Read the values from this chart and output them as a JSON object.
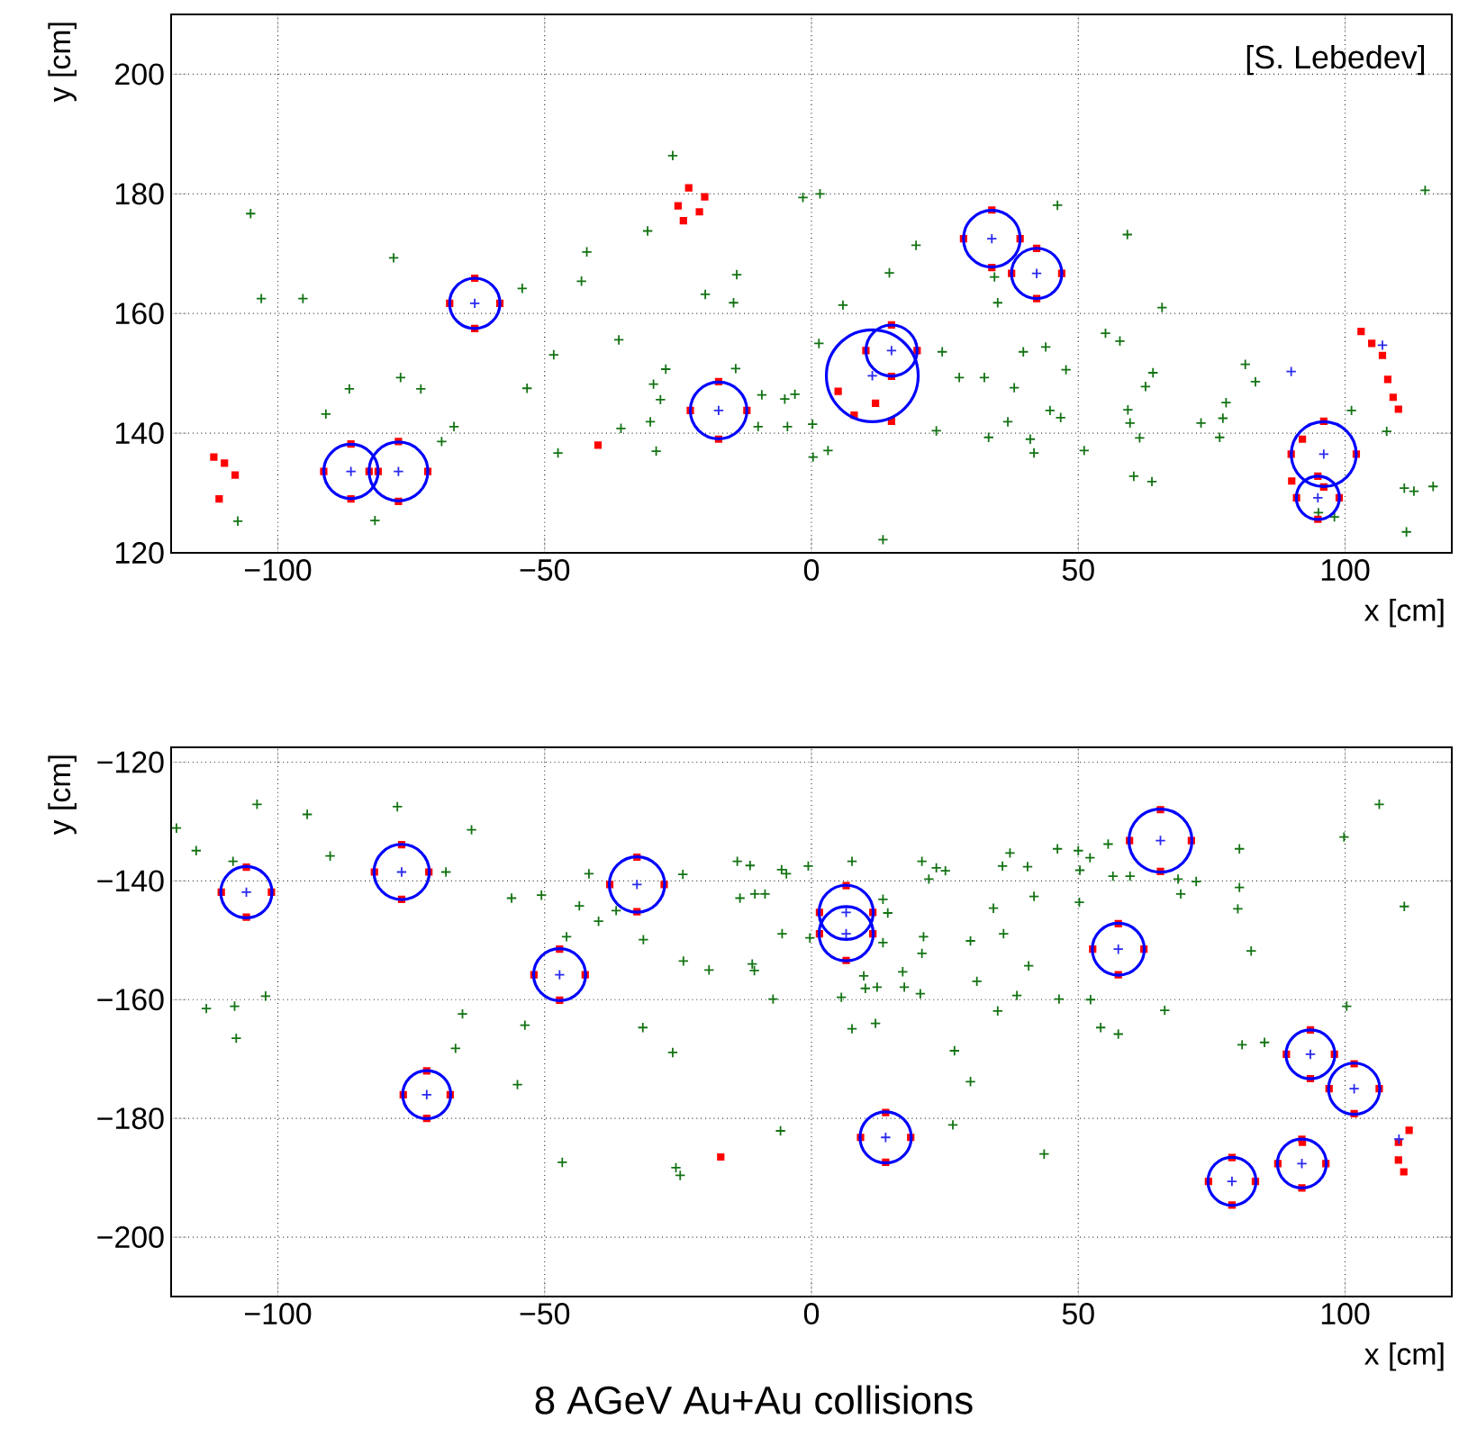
{
  "chart_data": [
    {
      "type": "scatter",
      "xlabel": "x [cm]",
      "ylabel": "y [cm]",
      "annotations": [
        "[S. Lebedev]"
      ],
      "grid": true,
      "xlim": [
        -120,
        120
      ],
      "ylim": [
        120,
        210
      ],
      "xticks": [
        {
          "value": -100,
          "label": "−100"
        },
        {
          "value": -50,
          "label": "−50"
        },
        {
          "value": 0,
          "label": "0"
        },
        {
          "value": 50,
          "label": "50"
        },
        {
          "value": 100,
          "label": "100"
        }
      ],
      "yticks": [
        120,
        140,
        160,
        180,
        200
      ],
      "series": [
        {
          "type": "scatter",
          "marker": "cross",
          "color": "#137313",
          "x": [
            -105.1,
            -103.1,
            -95.3,
            -78.3,
            -91,
            -86.6,
            -77,
            -73.2,
            -67,
            -69.3,
            -81.8,
            -107.5,
            -54.2,
            -53.3,
            -48.3,
            -47.5,
            -43.1,
            -42.1,
            -36.1,
            -35.7,
            -30.7,
            -29.6,
            -28.3,
            -27.3,
            -30.2,
            -29.1,
            -26,
            -19.9,
            -14.6,
            -14,
            -14.2,
            -10,
            -9.3,
            -4.5,
            -3.1,
            -5,
            -1.6,
            1.6,
            0.2,
            0.3,
            3.1,
            1.4,
            5.9,
            14.6,
            19.6,
            13.4,
            23.4,
            24.5,
            27.7,
            32.4,
            33.2,
            34.3,
            34.9,
            36.8,
            38,
            39.7,
            41,
            41.7,
            43.9,
            44.7,
            46.7,
            47.7,
            46.1,
            51.1,
            55.1,
            57.8,
            59.2,
            59.3,
            59.7,
            61.5,
            60.4,
            63.8,
            62.6,
            64,
            65.7,
            73,
            76.5,
            77.7,
            77.1,
            81.3,
            83.2,
            101.2,
            107.8,
            111.1,
            112.9,
            111.5,
            116.5,
            115,
            95,
            98
          ],
          "values": [
            176.7,
            162.5,
            162.5,
            169.3,
            143.2,
            147.4,
            149.3,
            147.4,
            141.1,
            138.6,
            125.4,
            125.3,
            164.2,
            147.5,
            153.1,
            136.7,
            165.4,
            170.3,
            155.6,
            140.8,
            173.8,
            148.2,
            145.6,
            150.7,
            141.9,
            137,
            186.4,
            163.2,
            161.8,
            166.5,
            150.8,
            141.1,
            146.4,
            141.1,
            146.5,
            145.7,
            179.4,
            180,
            141.5,
            136,
            137.1,
            155,
            161.4,
            166.8,
            171.4,
            122.2,
            140.4,
            153.6,
            149.3,
            149.3,
            139.3,
            166.1,
            161.8,
            141.9,
            147.6,
            153.6,
            139,
            136.7,
            154.4,
            143.8,
            142.6,
            150.6,
            178.1,
            137.1,
            156.7,
            155.4,
            173.2,
            143.9,
            141.7,
            139.2,
            132.8,
            131.9,
            147.8,
            150.1,
            161,
            141.7,
            139.3,
            145.1,
            142.5,
            151.5,
            148.6,
            143.8,
            140.3,
            130.8,
            130.3,
            123.5,
            131.1,
            180.6,
            126.7,
            126
          ]
        },
        {
          "type": "scatter",
          "marker": "square",
          "color": "#ff0000",
          "x": [
            -81.2,
            -91.4,
            -86.3,
            -86.3,
            -71.9,
            -82.9,
            -77.4,
            -77.4,
            -58.4,
            -67.8,
            -63.1,
            -63.1,
            -12.1,
            -22.7,
            -17.4,
            -17.4,
            5,
            8,
            12,
            15,
            19.8,
            10.2,
            15,
            15,
            39.1,
            28.5,
            33.8,
            33.8,
            46.9,
            37.5,
            42.2,
            42.2,
            102.1,
            89.9,
            96,
            96,
            98.9,
            90.9,
            94.9,
            94.9,
            -23,
            -25,
            -21,
            -24,
            -20,
            -112,
            -110,
            -108,
            -111,
            -40,
            103,
            105,
            107,
            108,
            109,
            110,
            90,
            92
          ],
          "values": [
            133.6,
            133.6,
            138.2,
            129,
            133.6,
            133.6,
            138.6,
            128.6,
            161.7,
            161.7,
            165.9,
            157.5,
            143.8,
            143.8,
            148.6,
            139,
            147,
            143,
            145,
            142,
            153.8,
            153.8,
            158.1,
            149.5,
            172.5,
            172.5,
            177.3,
            167.7,
            166.7,
            166.7,
            170.9,
            162.5,
            136.5,
            136.5,
            142,
            131,
            129.2,
            129.2,
            132.8,
            125.6,
            181,
            178,
            177,
            175.5,
            179.5,
            136,
            135,
            133,
            129,
            138,
            157,
            155,
            153,
            149,
            146,
            144,
            132,
            139
          ]
        },
        {
          "type": "bubble",
          "color": "#0000ff",
          "x": [
            -86.3,
            -77.4,
            -63.1,
            -17.4,
            11.4,
            15,
            33.8,
            42.2,
            96,
            94.9
          ],
          "values": [
            133.6,
            133.6,
            161.7,
            143.8,
            149.6,
            153.8,
            172.5,
            166.7,
            136.5,
            129.2
          ],
          "sizes": [
            0.35,
            0.41,
            0.3,
            0.38,
            1,
            0.31,
            0.38,
            0.3,
            0.5,
            0.22
          ]
        },
        {
          "type": "scatter",
          "marker": "cross",
          "color": "#2a2af0",
          "x": [
            -86.3,
            -77.4,
            -63.1,
            -17.4,
            11.4,
            15,
            33.8,
            42.2,
            96,
            94.9,
            89.9,
            107
          ],
          "values": [
            133.6,
            133.6,
            161.7,
            143.8,
            149.6,
            153.8,
            172.5,
            166.7,
            136.5,
            129.2,
            150.3,
            154.7
          ]
        }
      ]
    },
    {
      "type": "scatter",
      "xlabel": "x [cm]",
      "ylabel": "y [cm]",
      "annotations": [
        "8 AGeV Au+Au collisions"
      ],
      "grid": true,
      "xlim": [
        -120,
        120
      ],
      "ylim": [
        -210,
        -117.5
      ],
      "xticks": [
        {
          "value": -100,
          "label": "−100"
        },
        {
          "value": -50,
          "label": "−50"
        },
        {
          "value": 0,
          "label": "0"
        },
        {
          "value": 50,
          "label": "50"
        },
        {
          "value": 100,
          "label": "100"
        }
      ],
      "yticks": [
        {
          "value": -200,
          "label": "−200"
        },
        {
          "value": -180,
          "label": "−180"
        },
        {
          "value": -160,
          "label": "−160"
        },
        {
          "value": -140,
          "label": "−140"
        },
        {
          "value": -120,
          "label": "−120"
        }
      ],
      "series": [
        {
          "type": "scatter",
          "marker": "cross",
          "color": "#137313",
          "x": [
            -108.4,
            -103.9,
            -94.5,
            -90.2,
            -77.6,
            -68.5,
            -63.7,
            -119,
            -115.3,
            -113.4,
            -108.1,
            -107.8,
            -102.3,
            -65.4,
            -66.7,
            -53.7,
            -55.1,
            -56.2,
            -50.6,
            -45.9,
            -43.5,
            -41.7,
            -39.9,
            -36.6,
            -31.5,
            -31.6,
            -26,
            -24.1,
            -24,
            -19.2,
            -25.4,
            -24.6,
            -46.7,
            -13.9,
            -11.5,
            -13.4,
            -10.6,
            -8.7,
            -11.1,
            -10.7,
            -7.2,
            -5.6,
            -4.7,
            -5.5,
            -5.8,
            -0.6,
            -0.3,
            7.6,
            13.4,
            14.3,
            13.4,
            9.8,
            10.1,
            12.3,
            5.6,
            7.6,
            12,
            17.1,
            17.4,
            20.4,
            21,
            20.7,
            20.7,
            22,
            23.4,
            25.1,
            26.8,
            26.5,
            29.8,
            29.8,
            31,
            34.1,
            34.9,
            36,
            35.8,
            37.2,
            38.5,
            40.5,
            40.7,
            41.7,
            46.1,
            46.4,
            50,
            50.2,
            50.3,
            52.3,
            52.2,
            54.2,
            57.5,
            55.6,
            56.5,
            59.7,
            66.2,
            68.7,
            69.2,
            72.1,
            80.2,
            80.2,
            79.9,
            82.4,
            80.7,
            84.9,
            99.8,
            100.3,
            106.4,
            111.1,
            43.6
          ],
          "values": [
            -136.7,
            -127.1,
            -128.8,
            -135.8,
            -127.5,
            -138.5,
            -131.4,
            -131.1,
            -134.9,
            -161.5,
            -161.1,
            -166.5,
            -159.4,
            -162.4,
            -168.2,
            -164.3,
            -174.3,
            -142.9,
            -142.4,
            -149.4,
            -144.2,
            -138.8,
            -146.8,
            -145,
            -149.9,
            -164.7,
            -168.9,
            -138.9,
            -153.5,
            -155,
            -188.3,
            -189.6,
            -187.4,
            -136.7,
            -137.4,
            -142.9,
            -142.2,
            -142.2,
            -154,
            -155.1,
            -159.9,
            -138.1,
            -138.8,
            -148.9,
            -182.1,
            -137.5,
            -149.6,
            -136.7,
            -143.1,
            -145.4,
            -150.4,
            -156,
            -158.1,
            -157.9,
            -159.6,
            -164.9,
            -164,
            -155.3,
            -157.9,
            -159,
            -149.4,
            -152.2,
            -136.7,
            -139.7,
            -137.8,
            -138.3,
            -168.6,
            -181.1,
            -150.1,
            -173.8,
            -156.9,
            -144.6,
            -161.9,
            -148.9,
            -137.5,
            -135.3,
            -159.3,
            -137.6,
            -154.3,
            -142.6,
            -134.6,
            -159.9,
            -134.9,
            -143.6,
            -138.2,
            -160,
            -136.1,
            -164.7,
            -165.8,
            -133.8,
            -139.2,
            -139.2,
            -161.8,
            -139.7,
            -142.2,
            -140.1,
            -134.6,
            -141.1,
            -144.7,
            -151.8,
            -167.6,
            -167.2,
            -132.6,
            -161.1,
            -127.1,
            -144.3,
            -186
          ]
        },
        {
          "type": "scatter",
          "marker": "square",
          "color": "#ff0000",
          "x": [
            -101.2,
            -110.6,
            -105.9,
            -105.9,
            -71.7,
            -81.9,
            -76.8,
            -76.8,
            -27.6,
            -37.8,
            -32.7,
            -32.7,
            -42.4,
            -52,
            -47.2,
            -47.2,
            -67.7,
            -76.5,
            -72.1,
            -72.1,
            11.5,
            1.5,
            6.5,
            11.5,
            1.5,
            6.5,
            18.6,
            9.2,
            13.9,
            13.9,
            62.3,
            52.7,
            57.5,
            57.5,
            71.2,
            59.6,
            65.4,
            65.4,
            98,
            89,
            93.5,
            93.5,
            106.4,
            97,
            101.7,
            101.7,
            96.4,
            87.4,
            91.9,
            91.9,
            83.2,
            74.4,
            78.8,
            78.8,
            -17,
            110,
            112,
            110,
            111,
            92
          ],
          "values": [
            -141.9,
            -141.9,
            -137.7,
            -146.1,
            -138.5,
            -138.5,
            -133.9,
            -143.1,
            -140.6,
            -140.6,
            -136,
            -145.2,
            -155.8,
            -155.8,
            -151.5,
            -160.1,
            -176,
            -176,
            -172,
            -180,
            -145.3,
            -145.3,
            -140.8,
            -148.9,
            -148.9,
            -153.4,
            -183.2,
            -183.2,
            -179,
            -187.4,
            -151.5,
            -151.5,
            -147.2,
            -155.8,
            -133.2,
            -133.2,
            -128,
            -138.4,
            -169.2,
            -169.2,
            -165.1,
            -173.3,
            -175,
            -175,
            -170.8,
            -179.2,
            -187.6,
            -187.6,
            -183.5,
            -191.7,
            -190.6,
            -190.6,
            -186.6,
            -194.6,
            -186.5,
            -184,
            -182,
            -187,
            -189,
            -184
          ]
        },
        {
          "type": "bubble",
          "color": "#0000ff",
          "x": [
            -105.9,
            -76.8,
            -32.7,
            -47.2,
            -72.1,
            6.5,
            6.5,
            13.9,
            57.5,
            65.4,
            93.5,
            101.7,
            91.9,
            78.8
          ],
          "values": [
            -141.9,
            -138.5,
            -140.6,
            -155.8,
            -176,
            -145.3,
            -148.9,
            -183.2,
            -151.5,
            -133.2,
            -169.2,
            -175,
            -187.6,
            -190.6
          ],
          "sizes": [
            0.66,
            0.77,
            0.77,
            0.68,
            0.58,
            0.74,
            0.74,
            0.66,
            0.68,
            1,
            0.6,
            0.66,
            0.6,
            0.58
          ]
        },
        {
          "type": "scatter",
          "marker": "cross",
          "color": "#2a2af0",
          "x": [
            -105.9,
            -76.8,
            -32.7,
            -47.2,
            -72.1,
            6.5,
            6.5,
            13.9,
            57.5,
            65.4,
            93.5,
            101.7,
            91.9,
            78.8,
            110.1
          ],
          "values": [
            -141.9,
            -138.5,
            -140.6,
            -155.8,
            -176,
            -145.3,
            -148.9,
            -183.2,
            -151.5,
            -133.2,
            -169.2,
            -175,
            -187.6,
            -190.6,
            -183.5
          ]
        }
      ]
    }
  ]
}
